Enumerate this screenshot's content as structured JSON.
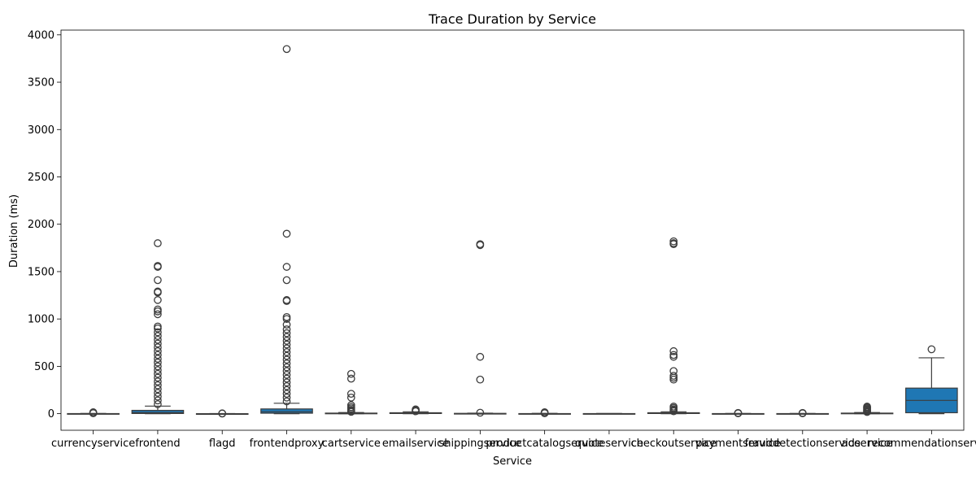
{
  "chart_data": {
    "type": "box",
    "title": "Trace Duration by Service",
    "xlabel": "Service",
    "ylabel": "Duration (ms)",
    "ylim": [
      -175,
      4050
    ],
    "yticks": [
      0,
      500,
      1000,
      1500,
      2000,
      2500,
      3000,
      3500,
      4000
    ],
    "grid": false,
    "legend": "none",
    "box_color": "#1f77b4",
    "categories": [
      "currencyservice",
      "frontend",
      "flagd",
      "frontendproxy",
      "cartservice",
      "emailservice",
      "shippingservice",
      "productcatalogservice",
      "quoteservice",
      "checkoutservice",
      "paymentservice",
      "frauddetectionservice",
      "adservice",
      "recommendationservice"
    ],
    "boxes": [
      {
        "min": 0,
        "q1": 0,
        "median": 0,
        "q3": 1,
        "max": 2,
        "outliers": [
          5,
          10,
          15
        ]
      },
      {
        "min": 0,
        "q1": 2,
        "median": 12,
        "q3": 35,
        "max": 80,
        "outliers": [
          100,
          140,
          180,
          220,
          260,
          300,
          340,
          380,
          420,
          460,
          500,
          540,
          580,
          620,
          660,
          700,
          740,
          780,
          820,
          860,
          900,
          920,
          1050,
          1080,
          1100,
          1200,
          1280,
          1290,
          1410,
          1550,
          1560,
          1800
        ]
      },
      {
        "min": 0,
        "q1": 0,
        "median": 0,
        "q3": 0,
        "max": 1,
        "outliers": [
          2,
          3
        ]
      },
      {
        "min": 0,
        "q1": 5,
        "median": 20,
        "q3": 50,
        "max": 110,
        "outliers": [
          130,
          170,
          210,
          250,
          290,
          330,
          370,
          410,
          450,
          490,
          530,
          570,
          610,
          650,
          690,
          730,
          770,
          810,
          850,
          890,
          940,
          1000,
          1020,
          1190,
          1200,
          1410,
          1550,
          1900,
          3850
        ]
      },
      {
        "min": 0,
        "q1": 0,
        "median": 2,
        "q3": 6,
        "max": 12,
        "outliers": [
          20,
          30,
          40,
          55,
          70,
          90,
          170,
          210,
          370,
          420
        ]
      },
      {
        "min": 0,
        "q1": 2,
        "median": 5,
        "q3": 10,
        "max": 20,
        "outliers": [
          25,
          35,
          45
        ]
      },
      {
        "min": 0,
        "q1": 0,
        "median": 1,
        "q3": 3,
        "max": 6,
        "outliers": [
          10,
          360,
          600,
          1780,
          1790
        ]
      },
      {
        "min": 0,
        "q1": 0,
        "median": 0,
        "q3": 1,
        "max": 3,
        "outliers": [
          5,
          10,
          15
        ]
      },
      {
        "min": 0,
        "q1": 0,
        "median": 0,
        "q3": 1,
        "max": 2,
        "outliers": []
      },
      {
        "min": 0,
        "q1": 2,
        "median": 5,
        "q3": 10,
        "max": 20,
        "outliers": [
          25,
          35,
          45,
          60,
          75,
          360,
          380,
          400,
          450,
          600,
          620,
          660,
          1790,
          1800,
          1820
        ]
      },
      {
        "min": 0,
        "q1": 0,
        "median": 0,
        "q3": 1,
        "max": 2,
        "outliers": [
          4,
          8
        ]
      },
      {
        "min": 0,
        "q1": 0,
        "median": 0,
        "q3": 1,
        "max": 2,
        "outliers": [
          4,
          8
        ]
      },
      {
        "min": 0,
        "q1": 0,
        "median": 2,
        "q3": 6,
        "max": 12,
        "outliers": [
          18,
          25,
          35,
          45,
          55,
          65,
          75
        ]
      },
      {
        "min": 0,
        "q1": 10,
        "median": 140,
        "q3": 270,
        "max": 590,
        "outliers": [
          680
        ]
      }
    ]
  }
}
